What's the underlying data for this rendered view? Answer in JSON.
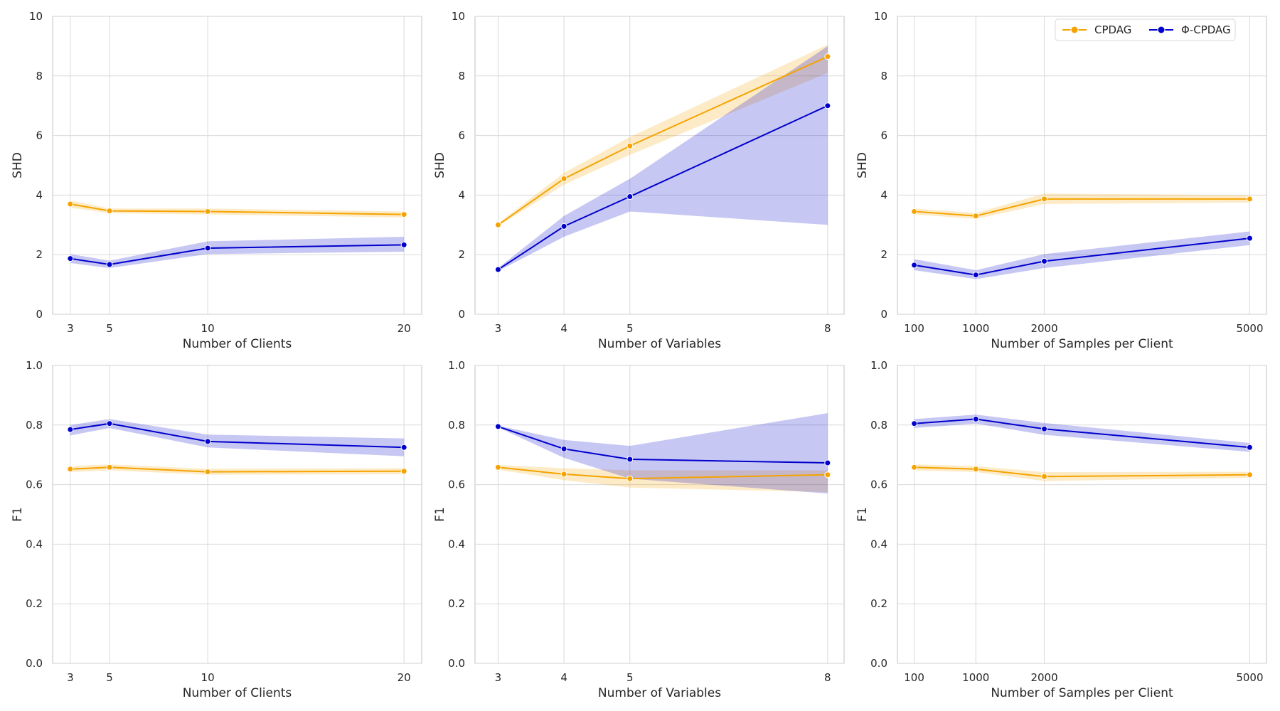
{
  "legend": {
    "position": "top-right",
    "entries": [
      {
        "name": "CPDAG",
        "color": "#f5a300"
      },
      {
        "name": "Φ-CPDAG",
        "color": "#0000cc"
      }
    ]
  },
  "chart_data": [
    {
      "type": "line",
      "row": 0,
      "col": 0,
      "xlabel": "Number of Clients",
      "ylabel": "SHD",
      "xlim": [
        2.1,
        20.9
      ],
      "ylim": [
        0,
        10
      ],
      "xticks": [
        3,
        5,
        10,
        20
      ],
      "yticks": [
        0,
        2,
        4,
        6,
        8,
        10
      ],
      "x": [
        3,
        5,
        10,
        20
      ],
      "series": [
        {
          "name": "CPDAG",
          "color": "#f5a300",
          "values": [
            3.7,
            3.47,
            3.45,
            3.35
          ],
          "lower": [
            3.58,
            3.39,
            3.35,
            3.25
          ],
          "upper": [
            3.82,
            3.55,
            3.55,
            3.45
          ]
        },
        {
          "name": "Φ-CPDAG",
          "color": "#0000cc",
          "values": [
            1.87,
            1.67,
            2.22,
            2.33
          ],
          "lower": [
            1.72,
            1.55,
            2.02,
            2.1
          ],
          "upper": [
            2.02,
            1.8,
            2.45,
            2.6
          ]
        }
      ]
    },
    {
      "type": "line",
      "row": 0,
      "col": 1,
      "xlabel": "Number of Variables",
      "ylabel": "SHD",
      "xlim": [
        2.65,
        8.25
      ],
      "ylim": [
        0,
        10
      ],
      "xticks": [
        3,
        4,
        5,
        8
      ],
      "yticks": [
        0,
        2,
        4,
        6,
        8,
        10
      ],
      "x": [
        3,
        4,
        5,
        8
      ],
      "series": [
        {
          "name": "CPDAG",
          "color": "#f5a300",
          "values": [
            3.0,
            4.55,
            5.65,
            8.65
          ],
          "lower": [
            2.95,
            4.35,
            5.35,
            8.1
          ],
          "upper": [
            3.05,
            4.75,
            5.95,
            9.05
          ]
        },
        {
          "name": "Φ-CPDAG",
          "color": "#0000cc",
          "values": [
            1.5,
            2.95,
            3.95,
            7.0
          ],
          "lower": [
            1.45,
            2.6,
            3.45,
            3.0
          ],
          "upper": [
            1.55,
            3.3,
            4.55,
            9.0
          ]
        }
      ]
    },
    {
      "type": "line",
      "row": 0,
      "col": 2,
      "xlabel": "Number of Samples per Client",
      "ylabel": "SHD",
      "xlim": [
        -145,
        5245
      ],
      "ylim": [
        0,
        10
      ],
      "xticks": [
        100,
        1000,
        2000,
        5000
      ],
      "yticks": [
        0,
        2,
        4,
        6,
        8,
        10
      ],
      "x": [
        100,
        1000,
        2000,
        5000
      ],
      "series": [
        {
          "name": "CPDAG",
          "color": "#f5a300",
          "values": [
            3.45,
            3.3,
            3.87,
            3.87
          ],
          "lower": [
            3.35,
            3.2,
            3.7,
            3.75
          ],
          "upper": [
            3.55,
            3.4,
            4.05,
            4.0
          ]
        },
        {
          "name": "Φ-CPDAG",
          "color": "#0000cc",
          "values": [
            1.65,
            1.32,
            1.78,
            2.55
          ],
          "lower": [
            1.48,
            1.18,
            1.55,
            2.32
          ],
          "upper": [
            1.85,
            1.48,
            2.02,
            2.78
          ]
        }
      ]
    },
    {
      "type": "line",
      "row": 1,
      "col": 0,
      "xlabel": "Number of Clients",
      "ylabel": "F1",
      "xlim": [
        2.1,
        20.9
      ],
      "ylim": [
        0,
        1
      ],
      "xticks": [
        3,
        5,
        10,
        20
      ],
      "yticks": [
        0.0,
        0.2,
        0.4,
        0.6,
        0.8,
        1.0
      ],
      "x": [
        3,
        5,
        10,
        20
      ],
      "series": [
        {
          "name": "CPDAG",
          "color": "#f5a300",
          "values": [
            0.652,
            0.658,
            0.643,
            0.645
          ],
          "lower": [
            0.642,
            0.648,
            0.633,
            0.635
          ],
          "upper": [
            0.662,
            0.668,
            0.653,
            0.655
          ]
        },
        {
          "name": "Φ-CPDAG",
          "color": "#0000cc",
          "values": [
            0.785,
            0.805,
            0.745,
            0.725
          ],
          "lower": [
            0.765,
            0.79,
            0.725,
            0.695
          ],
          "upper": [
            0.8,
            0.82,
            0.768,
            0.755
          ]
        }
      ]
    },
    {
      "type": "line",
      "row": 1,
      "col": 1,
      "xlabel": "Number of Variables",
      "ylabel": "F1",
      "xlim": [
        2.65,
        8.25
      ],
      "ylim": [
        0,
        1
      ],
      "xticks": [
        3,
        4,
        5,
        8
      ],
      "yticks": [
        0.0,
        0.2,
        0.4,
        0.6,
        0.8,
        1.0
      ],
      "x": [
        3,
        4,
        5,
        8
      ],
      "series": [
        {
          "name": "CPDAG",
          "color": "#f5a300",
          "values": [
            0.658,
            0.635,
            0.62,
            0.633
          ],
          "lower": [
            0.65,
            0.615,
            0.59,
            0.575
          ],
          "upper": [
            0.666,
            0.655,
            0.648,
            0.648
          ]
        },
        {
          "name": "Φ-CPDAG",
          "color": "#0000cc",
          "values": [
            0.795,
            0.72,
            0.685,
            0.673
          ],
          "lower": [
            0.792,
            0.69,
            0.62,
            0.57
          ],
          "upper": [
            0.798,
            0.75,
            0.73,
            0.84
          ]
        }
      ]
    },
    {
      "type": "line",
      "row": 1,
      "col": 2,
      "xlabel": "Number of Samples per Client",
      "ylabel": "F1",
      "xlim": [
        -145,
        5245
      ],
      "ylim": [
        0,
        1
      ],
      "xticks": [
        100,
        1000,
        2000,
        5000
      ],
      "yticks": [
        0.0,
        0.2,
        0.4,
        0.6,
        0.8,
        1.0
      ],
      "x": [
        100,
        1000,
        2000,
        5000
      ],
      "series": [
        {
          "name": "CPDAG",
          "color": "#f5a300",
          "values": [
            0.658,
            0.652,
            0.627,
            0.633
          ],
          "lower": [
            0.648,
            0.642,
            0.612,
            0.623
          ],
          "upper": [
            0.668,
            0.662,
            0.642,
            0.643
          ]
        },
        {
          "name": "Φ-CPDAG",
          "color": "#0000cc",
          "values": [
            0.805,
            0.82,
            0.787,
            0.725
          ],
          "lower": [
            0.79,
            0.805,
            0.767,
            0.71
          ],
          "upper": [
            0.82,
            0.835,
            0.807,
            0.74
          ]
        }
      ]
    }
  ]
}
